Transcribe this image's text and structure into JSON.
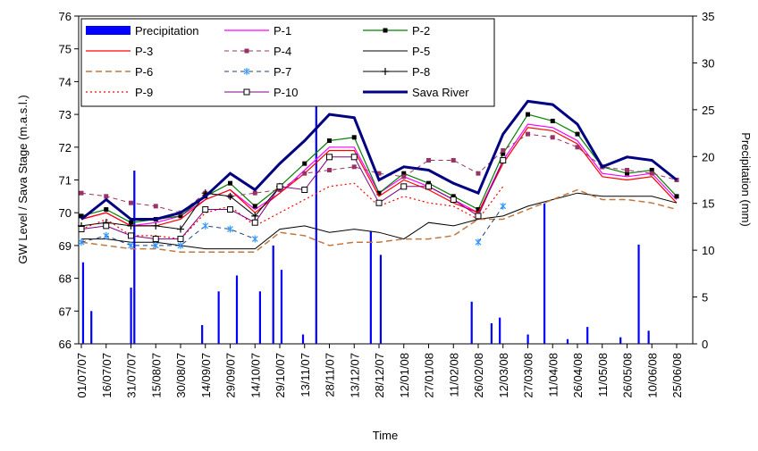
{
  "chart_data": {
    "type": "line",
    "y_label": "GW Level / Sava Stage (m.a.s.l.)",
    "y2_label": "Precipitation (mm)",
    "x_label": "Time",
    "x": [
      "01/07/07",
      "16/07/07",
      "31/07/07",
      "15/08/07",
      "30/08/07",
      "14/09/07",
      "29/09/07",
      "14/10/07",
      "29/10/07",
      "13/11/07",
      "28/11/07",
      "13/12/07",
      "28/12/07",
      "12/01/08",
      "27/01/08",
      "11/02/08",
      "26/02/08",
      "12/03/08",
      "27/03/08",
      "11/04/08",
      "26/04/08",
      "11/05/08",
      "26/05/08",
      "10/06/08",
      "25/06/08"
    ],
    "ylim": [
      66,
      76
    ],
    "yticks": [
      66,
      67,
      68,
      69,
      70,
      71,
      72,
      73,
      74,
      75,
      76
    ],
    "y2lim": [
      0,
      35
    ],
    "y2ticks": [
      0,
      5,
      10,
      15,
      20,
      25,
      30,
      35
    ],
    "series": [
      {
        "name": "Precipitation",
        "type": "bar",
        "axis": "y2",
        "color": "#0000ff",
        "x": [
          "02/07/07",
          "07/07/07",
          "31/07/07",
          "02/08/07",
          "12/09/07",
          "22/09/07",
          "03/10/07",
          "17/10/07",
          "25/10/07",
          "30/10/07",
          "12/11/07",
          "20/11/07",
          "23/12/07",
          "29/12/07",
          "22/02/08",
          "05/03/08",
          "10/03/08",
          "27/03/08",
          "06/04/08",
          "20/04/08",
          "02/05/08",
          "22/05/08",
          "02/06/08",
          "08/06/08"
        ],
        "values": [
          8.7,
          3.5,
          6,
          18.5,
          2,
          5.6,
          7.3,
          5.6,
          10.5,
          7.9,
          1,
          29.3,
          12,
          9.5,
          4.5,
          2.2,
          2.8,
          1,
          15,
          0.5,
          1.8,
          0.7,
          10.6,
          1.4
        ]
      },
      {
        "name": "P-1",
        "color": "#ff00ff",
        "width": 1.2,
        "values": [
          69.8,
          70.0,
          69.6,
          69.7,
          69.9,
          70.4,
          70.7,
          70.1,
          70.6,
          71.3,
          72.0,
          72.0,
          70.6,
          71.1,
          70.8,
          70.4,
          70.0,
          71.6,
          72.7,
          72.6,
          72.2,
          71.2,
          71.1,
          71.2,
          70.4
        ]
      },
      {
        "name": "P-2",
        "color": "#008000",
        "width": 1.2,
        "marker": "square",
        "marker_color": "#000000",
        "values": [
          69.9,
          70.1,
          69.7,
          69.8,
          69.9,
          70.5,
          70.9,
          70.2,
          70.8,
          71.5,
          72.2,
          72.3,
          70.6,
          71.2,
          70.9,
          70.5,
          70.1,
          71.8,
          73.0,
          72.8,
          72.4,
          71.4,
          71.2,
          71.3,
          70.5
        ]
      },
      {
        "name": "P-3",
        "color": "#ff0000",
        "width": 1.2,
        "values": [
          69.8,
          70.0,
          69.6,
          69.6,
          69.8,
          70.4,
          70.7,
          70.0,
          70.6,
          71.2,
          71.9,
          71.9,
          70.5,
          71.0,
          70.7,
          70.3,
          70.0,
          71.5,
          72.6,
          72.5,
          72.1,
          71.1,
          71.0,
          71.1,
          70.3
        ]
      },
      {
        "name": "P-4",
        "color": "#993366",
        "width": 1,
        "dash": "5 4",
        "marker": "square",
        "marker_color": "#993366",
        "values": [
          70.6,
          70.5,
          70.3,
          70.2,
          70.0,
          70.6,
          70.5,
          70.6,
          70.7,
          71.2,
          71.3,
          71.4,
          71.2,
          71.1,
          71.6,
          71.6,
          71.2,
          71.9,
          72.4,
          72.3,
          72.0,
          71.4,
          71.3,
          71.2,
          71.0
        ]
      },
      {
        "name": "P-5",
        "color": "#000000",
        "width": 1,
        "values": [
          69.2,
          69.2,
          69.1,
          69.1,
          69.0,
          68.9,
          68.9,
          68.9,
          69.5,
          69.6,
          69.4,
          69.5,
          69.4,
          69.2,
          69.7,
          69.6,
          69.8,
          69.9,
          70.2,
          70.4,
          70.6,
          70.5,
          70.5,
          70.5,
          70.3
        ]
      },
      {
        "name": "P-6",
        "color": "#c07840",
        "width": 1.5,
        "dash": "7 4",
        "values": [
          69.1,
          69.0,
          68.9,
          68.9,
          68.8,
          68.8,
          68.8,
          68.8,
          69.4,
          69.3,
          69.0,
          69.1,
          69.1,
          69.2,
          69.2,
          69.3,
          69.8,
          69.8,
          70.1,
          70.4,
          70.7,
          70.4,
          70.4,
          70.3,
          70.1
        ]
      },
      {
        "name": "P-7",
        "color": "#1f3f7f",
        "width": 1,
        "dash": "5 4",
        "marker": "star",
        "marker_color": "#3399ff",
        "values": [
          69.1,
          69.3,
          69.0,
          69.0,
          69.0,
          69.6,
          69.5,
          69.2,
          null,
          null,
          null,
          null,
          null,
          null,
          null,
          null,
          69.1,
          70.2,
          null,
          null,
          null,
          null,
          null,
          null,
          null
        ]
      },
      {
        "name": "P-8",
        "color": "#000000",
        "width": 1,
        "marker": "plus",
        "marker_color": "#000000",
        "values": [
          69.6,
          69.7,
          69.6,
          69.6,
          69.5,
          70.6,
          70.5,
          69.9,
          70.8,
          null,
          null,
          null,
          null,
          null,
          null,
          null,
          null,
          null,
          null,
          null,
          null,
          null,
          null,
          null,
          null
        ]
      },
      {
        "name": "P-9",
        "color": "#ff0000",
        "width": 1.2,
        "dash": "2 3",
        "values": [
          69.5,
          69.8,
          69.3,
          69.3,
          69.2,
          70.0,
          70.2,
          69.6,
          70.0,
          70.4,
          70.8,
          70.9,
          70.2,
          70.5,
          70.3,
          70.2,
          69.8,
          70.8,
          null,
          null,
          null,
          null,
          null,
          null,
          null
        ]
      },
      {
        "name": "P-10",
        "color": "#800080",
        "width": 1,
        "marker": "hollow-square",
        "marker_color": "#000000",
        "values": [
          69.5,
          69.6,
          69.3,
          69.2,
          69.2,
          70.1,
          70.1,
          69.7,
          70.8,
          70.7,
          71.7,
          71.7,
          70.3,
          70.8,
          70.8,
          70.4,
          69.9,
          71.6,
          null,
          null,
          null,
          null,
          null,
          null,
          null
        ]
      },
      {
        "name": "Sava River",
        "color": "#000080",
        "width": 3,
        "values": [
          69.8,
          70.4,
          69.8,
          69.8,
          70.0,
          70.5,
          71.2,
          70.7,
          71.5,
          72.2,
          73.0,
          72.9,
          71.0,
          71.4,
          71.3,
          70.9,
          70.6,
          72.4,
          73.4,
          73.3,
          72.7,
          71.4,
          71.7,
          71.6,
          71.0
        ]
      }
    ]
  }
}
